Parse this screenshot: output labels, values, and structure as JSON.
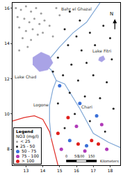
{
  "chart_data": {
    "type": "scatter",
    "xlim": [
      12.2,
      18.6
    ],
    "ylim": [
      7.1,
      16.3
    ],
    "xticks": [
      13,
      14,
      15,
      16,
      17,
      18
    ],
    "yticks": [
      8,
      10,
      12,
      14,
      16
    ],
    "grid": false,
    "legend": "bottom left",
    "legend_title": "Legend",
    "legend_subtitle": "NO3 (mg/l)",
    "series": [
      {
        "name": "< 25",
        "color": "#9e9e9e",
        "marker": "circle",
        "x": [
          12.4,
          12.7,
          13.0,
          13.3,
          13.6,
          13.9,
          12.5,
          12.9,
          13.2,
          13.5,
          13.8,
          14.1,
          14.4,
          12.6,
          13.0,
          13.4,
          13.7,
          14.0,
          14.6,
          12.8,
          13.3,
          15.0,
          14.8,
          13.1,
          12.6
        ],
        "y": [
          16.0,
          15.9,
          16.1,
          15.8,
          16.0,
          15.7,
          15.5,
          15.4,
          15.2,
          15.4,
          15.1,
          15.3,
          15.0,
          14.9,
          14.7,
          14.8,
          14.5,
          14.6,
          14.4,
          14.3,
          14.2,
          15.6,
          16.0,
          13.8,
          13.6
        ]
      },
      {
        "name": "25 - 50",
        "color": "#222222",
        "marker": "circle",
        "x": [
          15.6,
          16.2,
          15.3,
          16.0,
          16.8,
          17.6,
          15.5,
          16.3,
          17.1,
          18.0,
          14.9,
          15.7,
          16.6,
          18.1,
          15.2,
          16.1,
          17.0,
          17.8,
          15.6,
          16.5,
          17.4,
          14.9,
          15.9,
          16.8,
          18.2,
          15.3,
          17.7,
          14.6
        ],
        "y": [
          15.8,
          15.3,
          14.8,
          14.4,
          14.6,
          15.0,
          13.9,
          13.6,
          13.9,
          14.3,
          13.2,
          12.8,
          12.9,
          13.1,
          12.2,
          11.9,
          12.2,
          11.8,
          11.2,
          11.0,
          10.9,
          10.6,
          10.0,
          9.6,
          10.3,
          9.2,
          9.0,
          12.4
        ]
      },
      {
        "name": "50 - 75",
        "color": "#3a6fd8",
        "marker": "circle",
        "x": [
          15.0,
          16.2,
          17.2,
          15.6,
          16.6
        ],
        "y": [
          11.6,
          10.6,
          9.9,
          8.5,
          8.2
        ]
      },
      {
        "name": "75 - 100",
        "color": "#b03ab8",
        "marker": "circle",
        "x": [
          16.0,
          17.5,
          15.1,
          17.8,
          16.5
        ],
        "y": [
          9.3,
          9.4,
          8.0,
          8.0,
          7.9
        ]
      },
      {
        "name": "> 100",
        "color": "#e0201c",
        "marker": "circle",
        "x": [
          15.5,
          16.9,
          16.1,
          17.3,
          14.9
        ],
        "y": [
          9.8,
          8.5,
          8.3,
          8.3,
          8.9
        ]
      }
    ],
    "features": [
      {
        "color": "#e0302a",
        "fill": false,
        "x": [
          12.2,
          12.9,
          13.5,
          14.0,
          14.4,
          14.6,
          14.9
        ],
        "y": [
          9.6,
          9.8,
          9.9,
          9.7,
          9.0,
          8.2,
          7.1
        ]
      },
      {
        "color": "#7fa7d6",
        "fill": false,
        "x": [
          18.6,
          17.9,
          17.0,
          16.2,
          15.3,
          14.8,
          14.5,
          14.1
        ],
        "y": [
          8.1,
          8.4,
          8.9,
          10.3,
          11.7,
          11.9,
          12.5,
          12.8
        ]
      },
      {
        "color": "#7fa7d6",
        "fill": false,
        "x": [
          14.5,
          14.4,
          14.4,
          14.6,
          14.8
        ],
        "y": [
          8.6,
          9.6,
          10.5,
          11.4,
          11.9
        ]
      },
      {
        "color": "#7fa7d6",
        "fill": false,
        "x": [
          14.3,
          15.0,
          15.8,
          16.6,
          17.4
        ],
        "y": [
          13.0,
          13.8,
          14.6,
          15.2,
          16.3
        ]
      },
      {
        "color": "#a9a3e6",
        "fill": true,
        "x": [
          13.4,
          13.9,
          14.4,
          14.6,
          14.3,
          13.8,
          13.4
        ],
        "y": [
          13.2,
          13.5,
          13.3,
          12.9,
          12.5,
          12.4,
          12.8
        ]
      },
      {
        "color": "#a9a3e6",
        "fill": true,
        "x": [
          17.35,
          17.6,
          17.7,
          17.5,
          17.3
        ],
        "y": [
          13.2,
          13.3,
          13.1,
          12.95,
          13.05
        ]
      }
    ],
    "labels": [
      {
        "text": "Lake Chad",
        "x": 13.0,
        "y": 12.1
      },
      {
        "text": "Lake Fitri",
        "x": 17.5,
        "y": 13.6
      },
      {
        "text": "Chari",
        "x": 16.6,
        "y": 10.4
      },
      {
        "text": "Logone",
        "x": 13.9,
        "y": 10.5
      },
      {
        "text": "Bahr el Ghazal",
        "x": 16.0,
        "y": 15.95
      }
    ],
    "north_arrow": "N",
    "scale_bar": {
      "ticks": [
        0,
        50,
        100,
        150
      ],
      "unit": "Kilometers"
    }
  }
}
